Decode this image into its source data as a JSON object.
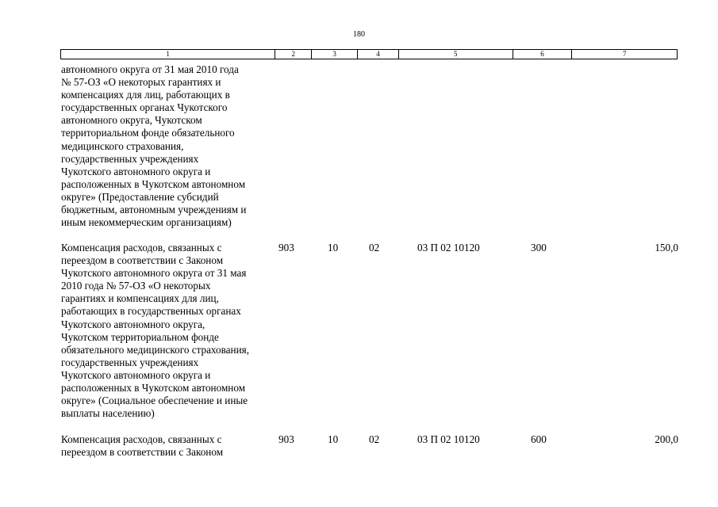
{
  "page_number": "180",
  "header": {
    "cols": [
      "1",
      "2",
      "3",
      "4",
      "5",
      "6",
      "7"
    ]
  },
  "rows": [
    {
      "lines": [
        "автономного округа от 31 мая 2010 года",
        "№ 57-ОЗ «О некоторых гарантиях и",
        "компенсациях для лиц, работающих в",
        "государственных органах Чукотского",
        "автономного округа, Чукотском",
        "территориальном фонде обязательного",
        "медицинского страхования,",
        "государственных учреждениях",
        "Чукотского автономного округа и",
        "расположенных в Чукотском автономном",
        "округе» (Предоставление субсидий",
        "бюджетным, автономным учреждениям и",
        "иным некоммерческим организациям)"
      ]
    },
    {
      "lines": [
        "Компенсация расходов, связанных с",
        "переездом в соответствии с Законом",
        "Чукотского автономного округа от 31 мая",
        "2010 года № 57-ОЗ «О некоторых",
        "гарантиях и компенсациях для лиц,",
        "работающих в государственных органах",
        "Чукотского автономного округа,",
        "Чукотском территориальном фонде",
        "обязательного медицинского страхования,",
        "государственных учреждениях",
        "Чукотского автономного округа и",
        "расположенных в Чукотском автономном",
        "округе» (Социальное обеспечение и иные",
        "выплаты населению)"
      ],
      "c2": "903",
      "c3": "10",
      "c4": "02",
      "c5": "03 П 02 10120",
      "c6": "300",
      "c7": "150,0"
    },
    {
      "lines": [
        "Компенсация расходов, связанных с",
        "переездом в соответствии с Законом"
      ],
      "c2": "903",
      "c3": "10",
      "c4": "02",
      "c5": "03 П 02 10120",
      "c6": "600",
      "c7": "200,0"
    }
  ]
}
